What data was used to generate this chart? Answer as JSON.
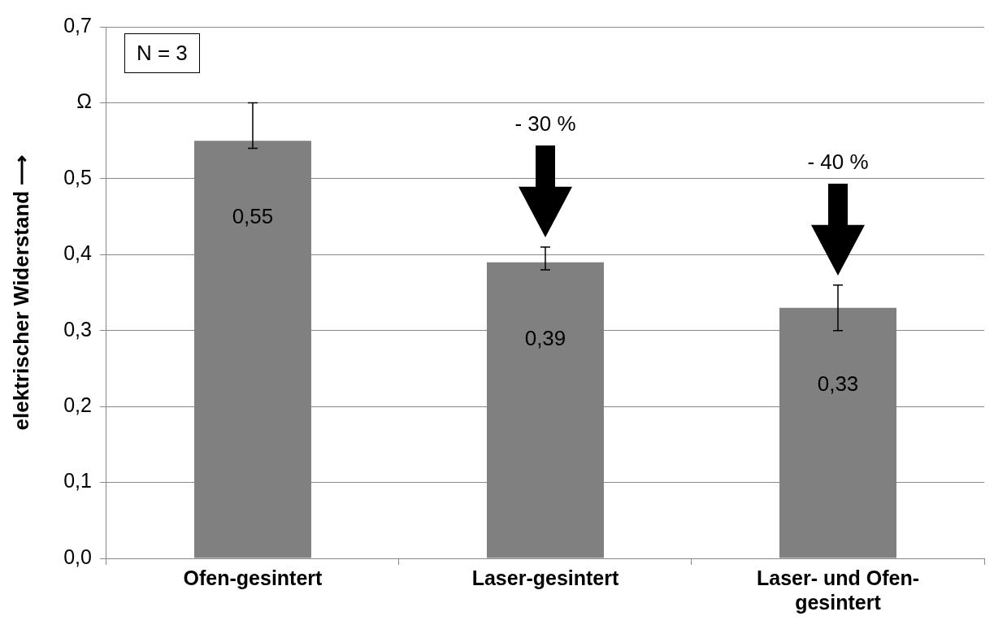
{
  "chart_data": {
    "type": "bar",
    "ylabel": "elektrischer Widerstand ⟶",
    "categories": [
      "Ofen-gesintert",
      "Laser-gesintert",
      "Laser- und Ofen-gesintert"
    ],
    "values": [
      0.55,
      0.39,
      0.33
    ],
    "color": "#808080",
    "errors": [
      [
        0.54,
        0.6
      ],
      [
        0.38,
        0.41
      ],
      [
        0.3,
        0.36
      ]
    ],
    "value_labels": [
      "0,55",
      "0,39",
      "0,33"
    ],
    "ylim": [
      0,
      0.7
    ],
    "yticks": [
      {
        "value": 0,
        "label": "0,0"
      },
      {
        "value": 0.1,
        "label": "0,1"
      },
      {
        "value": 0.2,
        "label": "0,2"
      },
      {
        "value": 0.3,
        "label": "0,3"
      },
      {
        "value": 0.4,
        "label": "0,4"
      },
      {
        "value": 0.5,
        "label": "0,5"
      },
      {
        "value": 0.6,
        "label": "Ω"
      },
      {
        "value": 0.7,
        "label": "0,7"
      }
    ],
    "grid": "y",
    "legend": false,
    "annotations": [
      "N = 3",
      "- 30 %",
      "- 40 %"
    ]
  }
}
